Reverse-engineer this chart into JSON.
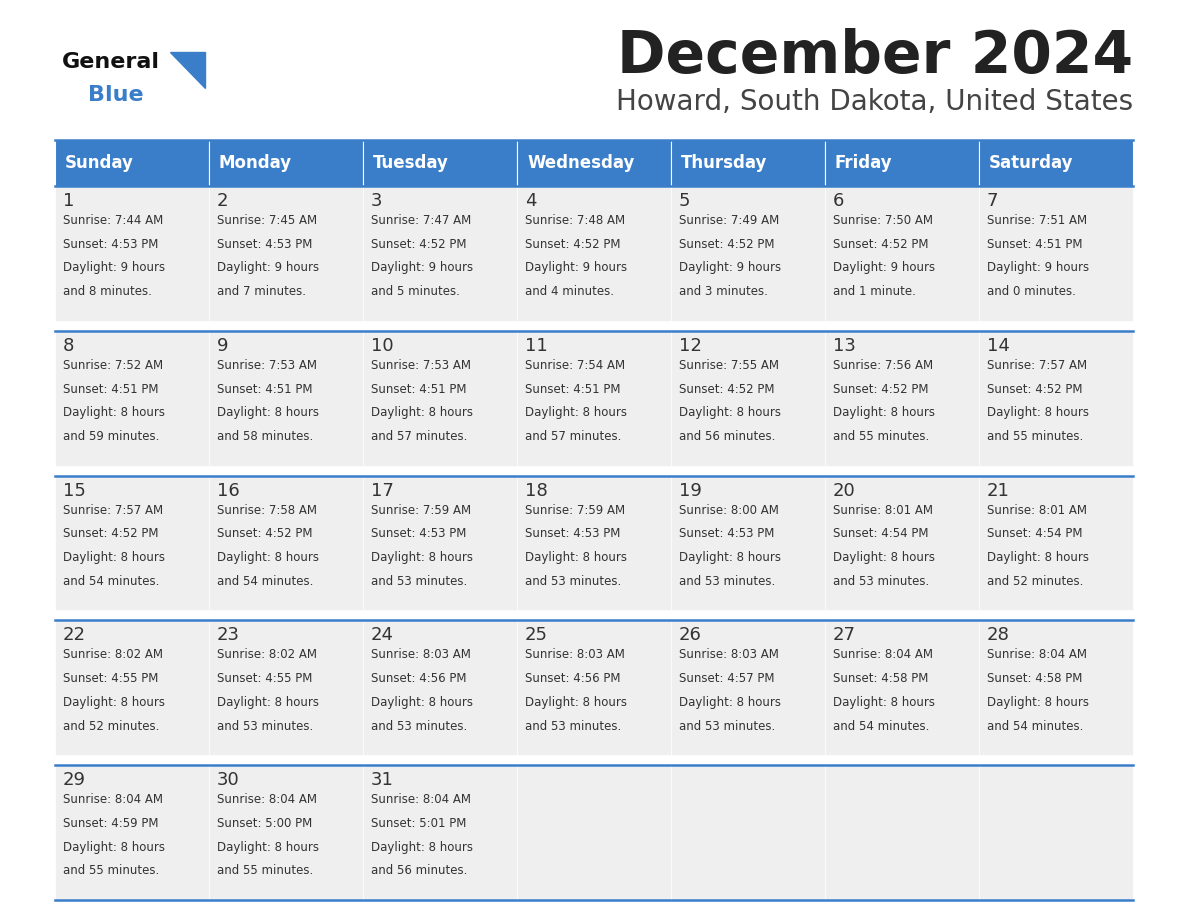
{
  "title": "December 2024",
  "subtitle": "Howard, South Dakota, United States",
  "days_of_week": [
    "Sunday",
    "Monday",
    "Tuesday",
    "Wednesday",
    "Thursday",
    "Friday",
    "Saturday"
  ],
  "header_bg_color": "#3A7DC9",
  "header_text_color": "#FFFFFF",
  "row_bg_color": "#EFEFEF",
  "cell_border_color": "#3A7DC9",
  "title_color": "#222222",
  "subtitle_color": "#444444",
  "day_number_color": "#333333",
  "cell_text_color": "#333333",
  "logo_general_color": "#111111",
  "logo_blue_color": "#3A7DC9",
  "logo_triangle_color": "#3A7DC9",
  "calendar_data": [
    [
      {
        "day": 1,
        "sunrise": "7:44 AM",
        "sunset": "4:53 PM",
        "daylight": "9 hours",
        "daylight2": "and 8 minutes."
      },
      {
        "day": 2,
        "sunrise": "7:45 AM",
        "sunset": "4:53 PM",
        "daylight": "9 hours",
        "daylight2": "and 7 minutes."
      },
      {
        "day": 3,
        "sunrise": "7:47 AM",
        "sunset": "4:52 PM",
        "daylight": "9 hours",
        "daylight2": "and 5 minutes."
      },
      {
        "day": 4,
        "sunrise": "7:48 AM",
        "sunset": "4:52 PM",
        "daylight": "9 hours",
        "daylight2": "and 4 minutes."
      },
      {
        "day": 5,
        "sunrise": "7:49 AM",
        "sunset": "4:52 PM",
        "daylight": "9 hours",
        "daylight2": "and 3 minutes."
      },
      {
        "day": 6,
        "sunrise": "7:50 AM",
        "sunset": "4:52 PM",
        "daylight": "9 hours",
        "daylight2": "and 1 minute."
      },
      {
        "day": 7,
        "sunrise": "7:51 AM",
        "sunset": "4:51 PM",
        "daylight": "9 hours",
        "daylight2": "and 0 minutes."
      }
    ],
    [
      {
        "day": 8,
        "sunrise": "7:52 AM",
        "sunset": "4:51 PM",
        "daylight": "8 hours",
        "daylight2": "and 59 minutes."
      },
      {
        "day": 9,
        "sunrise": "7:53 AM",
        "sunset": "4:51 PM",
        "daylight": "8 hours",
        "daylight2": "and 58 minutes."
      },
      {
        "day": 10,
        "sunrise": "7:53 AM",
        "sunset": "4:51 PM",
        "daylight": "8 hours",
        "daylight2": "and 57 minutes."
      },
      {
        "day": 11,
        "sunrise": "7:54 AM",
        "sunset": "4:51 PM",
        "daylight": "8 hours",
        "daylight2": "and 57 minutes."
      },
      {
        "day": 12,
        "sunrise": "7:55 AM",
        "sunset": "4:52 PM",
        "daylight": "8 hours",
        "daylight2": "and 56 minutes."
      },
      {
        "day": 13,
        "sunrise": "7:56 AM",
        "sunset": "4:52 PM",
        "daylight": "8 hours",
        "daylight2": "and 55 minutes."
      },
      {
        "day": 14,
        "sunrise": "7:57 AM",
        "sunset": "4:52 PM",
        "daylight": "8 hours",
        "daylight2": "and 55 minutes."
      }
    ],
    [
      {
        "day": 15,
        "sunrise": "7:57 AM",
        "sunset": "4:52 PM",
        "daylight": "8 hours",
        "daylight2": "and 54 minutes."
      },
      {
        "day": 16,
        "sunrise": "7:58 AM",
        "sunset": "4:52 PM",
        "daylight": "8 hours",
        "daylight2": "and 54 minutes."
      },
      {
        "day": 17,
        "sunrise": "7:59 AM",
        "sunset": "4:53 PM",
        "daylight": "8 hours",
        "daylight2": "and 53 minutes."
      },
      {
        "day": 18,
        "sunrise": "7:59 AM",
        "sunset": "4:53 PM",
        "daylight": "8 hours",
        "daylight2": "and 53 minutes."
      },
      {
        "day": 19,
        "sunrise": "8:00 AM",
        "sunset": "4:53 PM",
        "daylight": "8 hours",
        "daylight2": "and 53 minutes."
      },
      {
        "day": 20,
        "sunrise": "8:01 AM",
        "sunset": "4:54 PM",
        "daylight": "8 hours",
        "daylight2": "and 53 minutes."
      },
      {
        "day": 21,
        "sunrise": "8:01 AM",
        "sunset": "4:54 PM",
        "daylight": "8 hours",
        "daylight2": "and 52 minutes."
      }
    ],
    [
      {
        "day": 22,
        "sunrise": "8:02 AM",
        "sunset": "4:55 PM",
        "daylight": "8 hours",
        "daylight2": "and 52 minutes."
      },
      {
        "day": 23,
        "sunrise": "8:02 AM",
        "sunset": "4:55 PM",
        "daylight": "8 hours",
        "daylight2": "and 53 minutes."
      },
      {
        "day": 24,
        "sunrise": "8:03 AM",
        "sunset": "4:56 PM",
        "daylight": "8 hours",
        "daylight2": "and 53 minutes."
      },
      {
        "day": 25,
        "sunrise": "8:03 AM",
        "sunset": "4:56 PM",
        "daylight": "8 hours",
        "daylight2": "and 53 minutes."
      },
      {
        "day": 26,
        "sunrise": "8:03 AM",
        "sunset": "4:57 PM",
        "daylight": "8 hours",
        "daylight2": "and 53 minutes."
      },
      {
        "day": 27,
        "sunrise": "8:04 AM",
        "sunset": "4:58 PM",
        "daylight": "8 hours",
        "daylight2": "and 54 minutes."
      },
      {
        "day": 28,
        "sunrise": "8:04 AM",
        "sunset": "4:58 PM",
        "daylight": "8 hours",
        "daylight2": "and 54 minutes."
      }
    ],
    [
      {
        "day": 29,
        "sunrise": "8:04 AM",
        "sunset": "4:59 PM",
        "daylight": "8 hours",
        "daylight2": "and 55 minutes."
      },
      {
        "day": 30,
        "sunrise": "8:04 AM",
        "sunset": "5:00 PM",
        "daylight": "8 hours",
        "daylight2": "and 55 minutes."
      },
      {
        "day": 31,
        "sunrise": "8:04 AM",
        "sunset": "5:01 PM",
        "daylight": "8 hours",
        "daylight2": "and 56 minutes."
      },
      null,
      null,
      null,
      null
    ]
  ]
}
